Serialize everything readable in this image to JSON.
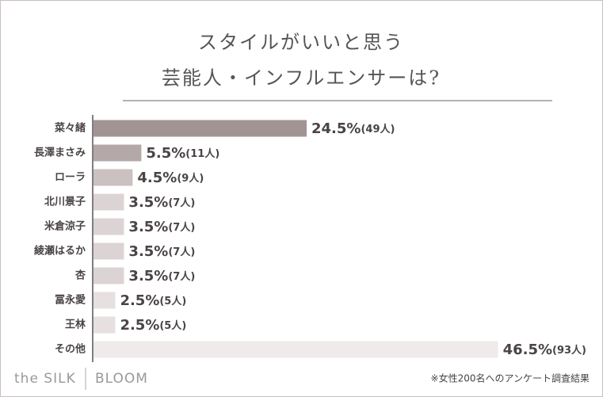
{
  "chart_data": {
    "type": "hbar",
    "title": [
      "スタイルがいいと思う",
      "芸能人・インフルエンサーは?"
    ],
    "categories": [
      "菜々緒",
      "長澤まさみ",
      "ローラ",
      "北川景子",
      "米倉涼子",
      "綾瀬はるか",
      "杏",
      "冨永愛",
      "王林",
      "その他"
    ],
    "values": [
      24.5,
      5.5,
      4.5,
      3.5,
      3.5,
      3.5,
      3.5,
      2.5,
      2.5,
      46.5
    ],
    "value_labels": [
      "24.5%(49人)",
      "5.5%(11人)",
      "4.5%(9人)",
      "3.5%(7人)",
      "3.5%(7人)",
      "3.5%(7人)",
      "3.5%(7人)",
      "2.5%(5人)",
      "2.5%(5人)",
      "46.5%(93人)"
    ],
    "colors": [
      "#a39494",
      "#b4a8a8",
      "#cbc1c1",
      "#dcd4d4",
      "#dcd4d4",
      "#dcd4d4",
      "#dcd4d4",
      "#e6e0e0",
      "#e6e0e0",
      "#efebeb"
    ],
    "xlim": [
      0,
      50
    ],
    "logo": [
      "the SILK",
      "BLOOM"
    ],
    "note": "※女性200名へのアンケート調査結果"
  }
}
